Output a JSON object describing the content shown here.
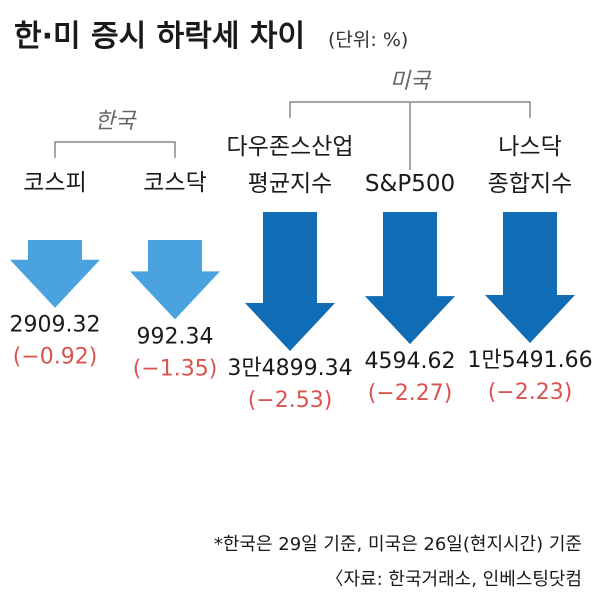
{
  "title": "한·미 증시 하락세 차이",
  "unit": "(단위: %)",
  "groups": {
    "korea": "한국",
    "us": "미국"
  },
  "colors": {
    "korea": "#4aa3de",
    "us": "#0f6cb5",
    "negative": "#d9534f"
  },
  "chart_data": {
    "type": "bar",
    "orientation": "downward-arrows",
    "categories": [
      {
        "label": [
          "코스피"
        ],
        "group": "한국",
        "index_value": "2909.32",
        "change_label": "(−0.92)",
        "change": -0.92
      },
      {
        "label": [
          "코스닥"
        ],
        "group": "한국",
        "index_value": "992.34",
        "change_label": "(−1.35)",
        "change": -1.35
      },
      {
        "label": [
          "다우존스산업",
          "평균지수"
        ],
        "group": "미국",
        "index_value": "3만4899.34",
        "change_label": "(−2.53)",
        "change": -2.53
      },
      {
        "label": [
          "S&P500"
        ],
        "group": "미국",
        "index_value": "4594.62",
        "change_label": "(−2.27)",
        "change": -2.27
      },
      {
        "label": [
          "나스닥",
          "종합지수"
        ],
        "group": "미국",
        "index_value": "1만5491.66",
        "change_label": "(−2.23)",
        "change": -2.23
      }
    ]
  },
  "footnotes": [
    "*한국은 29일 기준, 미국은 26일(현지시간) 기준",
    "〈자료: 한국거래소, 인베스팅닷컴"
  ]
}
